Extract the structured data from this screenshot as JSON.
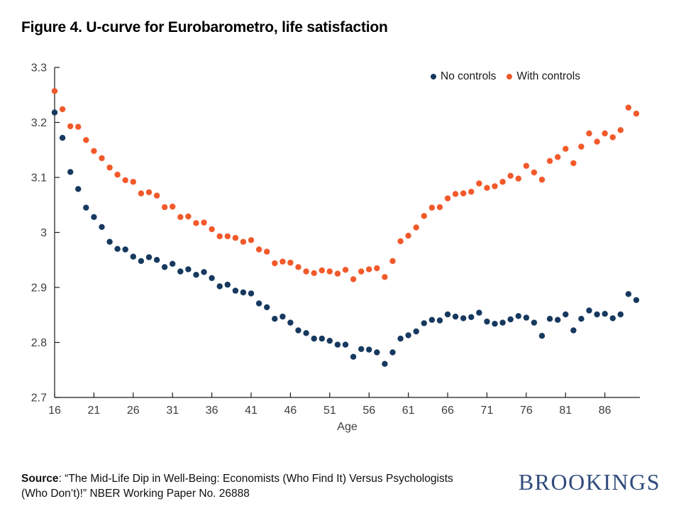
{
  "title": "Figure 4. U-curve for Eurobarometro, life satisfaction",
  "source": {
    "label": "Source",
    "text1": ": “The Mid-Life Dip in Well-Being: Economists (Who Find It) Versus Psychologists",
    "text2": "(Who Don’t)!” NBER Working Paper No. 26888"
  },
  "logo": {
    "text": "BROOKINGS",
    "color": "#2f4b7c"
  },
  "chart_data": {
    "type": "scatter",
    "title": "Figure 4. U-curve for Eurobarometro, life satisfaction",
    "xlabel": "Age",
    "ylabel": "",
    "xlim": [
      16,
      90
    ],
    "ylim": [
      2.7,
      3.3
    ],
    "grid": false,
    "legend_position": "top-right",
    "x_ticks": [
      16,
      21,
      26,
      31,
      36,
      41,
      46,
      51,
      56,
      61,
      66,
      71,
      76,
      81,
      86
    ],
    "y_ticks": [
      "3.3",
      "3.2",
      "3.1",
      "3",
      "2.9",
      "2.8",
      "2.7"
    ],
    "x": [
      16,
      17,
      18,
      19,
      20,
      21,
      22,
      23,
      24,
      25,
      26,
      27,
      28,
      29,
      30,
      31,
      32,
      33,
      34,
      35,
      36,
      37,
      38,
      39,
      40,
      41,
      42,
      43,
      44,
      45,
      46,
      47,
      48,
      49,
      50,
      51,
      52,
      53,
      54,
      55,
      56,
      57,
      58,
      59,
      60,
      61,
      62,
      63,
      64,
      65,
      66,
      67,
      68,
      69,
      70,
      71,
      72,
      73,
      74,
      75,
      76,
      77,
      78,
      79,
      80,
      81,
      82,
      83,
      84,
      85,
      86,
      87,
      88,
      89,
      90
    ],
    "series": [
      {
        "name": "No controls",
        "color": "#17395f",
        "values": [
          3.218,
          3.172,
          3.11,
          3.079,
          3.045,
          3.028,
          3.01,
          2.983,
          2.97,
          2.969,
          2.956,
          2.948,
          2.955,
          2.95,
          2.937,
          2.943,
          2.929,
          2.933,
          2.923,
          2.928,
          2.917,
          2.902,
          2.905,
          2.894,
          2.891,
          2.889,
          2.871,
          2.864,
          2.843,
          2.847,
          2.836,
          2.822,
          2.817,
          2.807,
          2.807,
          2.803,
          2.796,
          2.796,
          2.774,
          2.788,
          2.787,
          2.782,
          2.761,
          2.782,
          2.807,
          2.813,
          2.82,
          2.835,
          2.841,
          2.84,
          2.851,
          2.847,
          2.844,
          2.846,
          2.854,
          2.838,
          2.834,
          2.836,
          2.842,
          2.848,
          2.845,
          2.836,
          2.812,
          2.843,
          2.841,
          2.851,
          2.822,
          2.843,
          2.858,
          2.851,
          2.852,
          2.844,
          2.851,
          2.888,
          2.877
        ]
      },
      {
        "name": "With controls",
        "color": "#f2592a",
        "values": [
          3.257,
          3.224,
          3.193,
          3.192,
          3.168,
          3.148,
          3.135,
          3.118,
          3.105,
          3.095,
          3.092,
          3.071,
          3.073,
          3.067,
          3.046,
          3.047,
          3.028,
          3.029,
          3.017,
          3.018,
          3.006,
          2.993,
          2.993,
          2.99,
          2.983,
          2.986,
          2.969,
          2.965,
          2.944,
          2.947,
          2.945,
          2.937,
          2.929,
          2.926,
          2.931,
          2.929,
          2.925,
          2.932,
          2.915,
          2.929,
          2.933,
          2.935,
          2.919,
          2.948,
          2.984,
          2.994,
          3.009,
          3.03,
          3.045,
          3.046,
          3.062,
          3.07,
          3.071,
          3.074,
          3.089,
          3.081,
          3.084,
          3.092,
          3.103,
          3.098,
          3.121,
          3.109,
          3.096,
          3.13,
          3.137,
          3.152,
          3.126,
          3.156,
          3.18,
          3.165,
          3.18,
          3.173,
          3.186,
          3.227,
          3.216
        ]
      }
    ]
  }
}
